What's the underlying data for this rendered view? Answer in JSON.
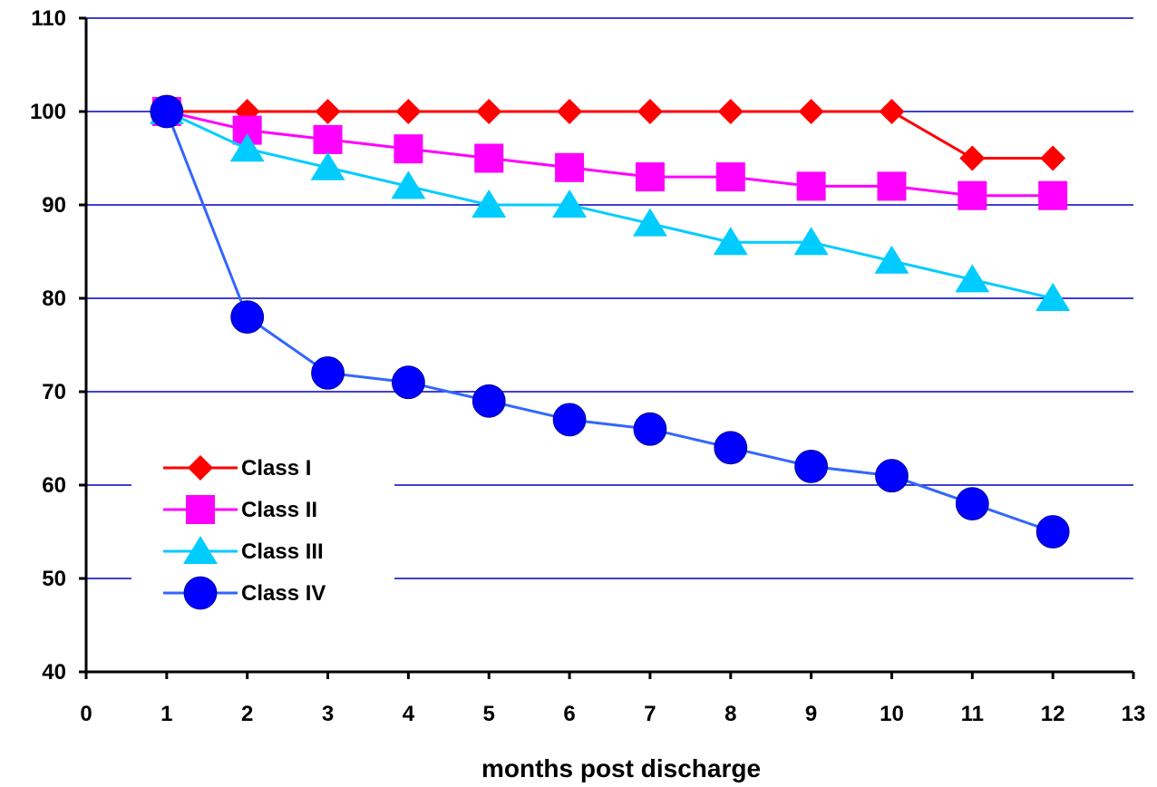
{
  "chart_data": {
    "type": "line",
    "title": "",
    "xlabel": "months post discharge",
    "ylabel": "",
    "xlim": [
      0,
      13
    ],
    "ylim": [
      40,
      110
    ],
    "x_ticks": [
      0,
      1,
      2,
      3,
      4,
      5,
      6,
      7,
      8,
      9,
      10,
      11,
      12,
      13
    ],
    "y_ticks": [
      40,
      50,
      60,
      70,
      80,
      90,
      100,
      110
    ],
    "grid": {
      "horizontal": true,
      "vertical": false,
      "color": "#0000c0"
    },
    "legend": {
      "placement": "lower-left"
    },
    "x": [
      1,
      2,
      3,
      4,
      5,
      6,
      7,
      8,
      9,
      10,
      11,
      12
    ],
    "series": [
      {
        "name": "Class I",
        "color": "#ff0000",
        "marker_color": "#ff0000",
        "marker": "diamond",
        "values": [
          100,
          100,
          100,
          100,
          100,
          100,
          100,
          100,
          100,
          100,
          95,
          95
        ]
      },
      {
        "name": "Class II",
        "color": "#ff00ff",
        "marker_color": "#ff00ff",
        "marker": "square",
        "values": [
          100,
          98,
          97,
          96,
          95,
          94,
          93,
          93,
          92,
          92,
          91,
          91
        ]
      },
      {
        "name": "Class III",
        "color": "#00ccff",
        "marker_color": "#00ccff",
        "marker": "triangle",
        "values": [
          100,
          96,
          94,
          92,
          90,
          90,
          88,
          86,
          86,
          84,
          82,
          80
        ]
      },
      {
        "name": "Class IV",
        "color": "#3366ff",
        "marker_color": "#0000ff",
        "marker": "circle",
        "values": [
          100,
          78,
          72,
          71,
          69,
          67,
          66,
          64,
          62,
          61,
          58,
          55
        ]
      }
    ]
  }
}
